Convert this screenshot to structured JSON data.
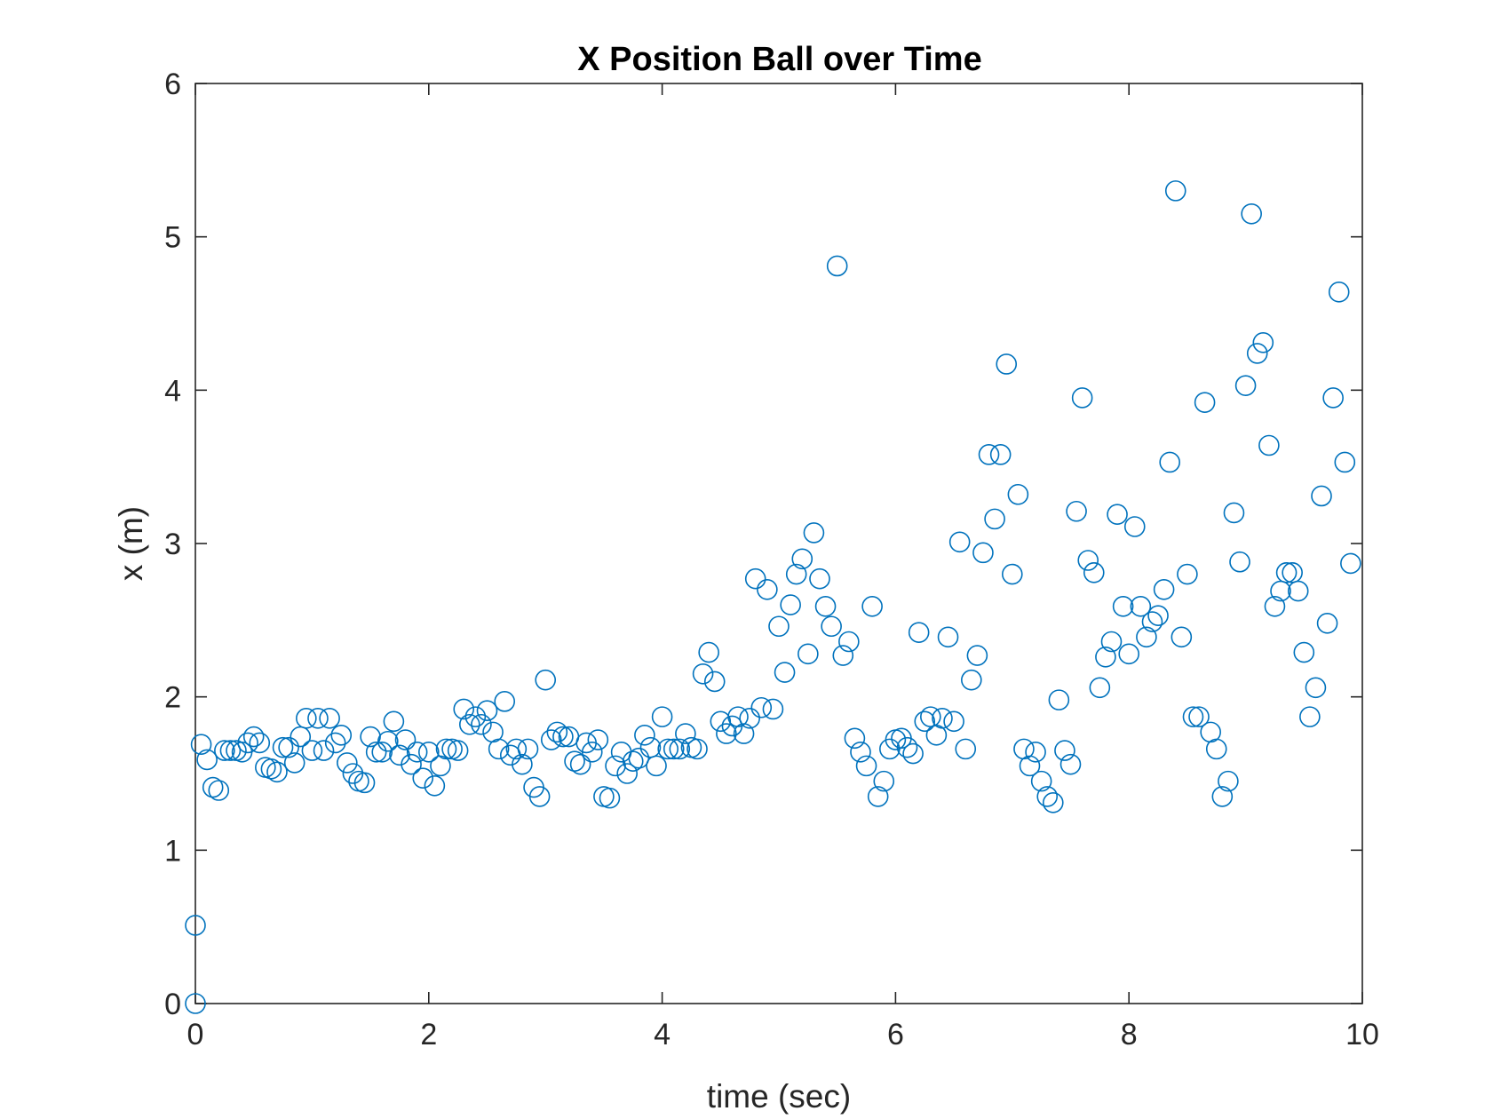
{
  "chart_data": {
    "type": "scatter",
    "title": "X Position Ball over Time",
    "xlabel": "time (sec)",
    "ylabel": "x (m)",
    "xlim": [
      0,
      10
    ],
    "ylim": [
      0,
      6
    ],
    "xticks": [
      0,
      2,
      4,
      6,
      8,
      10
    ],
    "yticks": [
      0,
      1,
      2,
      3,
      4,
      5,
      6
    ],
    "grid": false,
    "marker": "open-circle",
    "marker_color": "#0072BD",
    "series": [
      {
        "x": [
          0.0,
          0.0,
          0.05,
          0.1,
          0.15,
          0.2,
          0.25,
          0.3,
          0.35,
          0.4,
          0.45,
          0.5,
          0.55,
          0.6,
          0.65,
          0.7,
          0.75,
          0.8,
          0.85,
          0.9,
          0.95,
          1.0,
          1.05,
          1.1,
          1.15,
          1.2,
          1.25,
          1.3,
          1.35,
          1.4,
          1.45,
          1.5,
          1.55,
          1.6,
          1.65,
          1.7,
          1.75,
          1.8,
          1.85,
          1.9,
          1.95,
          2.0,
          2.05,
          2.1,
          2.15,
          2.2,
          2.25,
          2.3,
          2.35,
          2.4,
          2.45,
          2.5,
          2.55,
          2.6,
          2.65,
          2.7,
          2.75,
          2.8,
          2.85,
          2.9,
          2.95,
          3.0,
          3.05,
          3.1,
          3.15,
          3.2,
          3.25,
          3.3,
          3.35,
          3.4,
          3.45,
          3.5,
          3.55,
          3.6,
          3.65,
          3.7,
          3.75,
          3.8,
          3.85,
          3.9,
          3.95,
          4.0,
          4.05,
          4.1,
          4.15,
          4.2,
          4.25,
          4.3,
          4.35,
          4.4,
          4.45,
          4.5,
          4.55,
          4.6,
          4.65,
          4.7,
          4.75,
          4.8,
          4.85,
          4.9,
          4.95,
          5.0,
          5.05,
          5.1,
          5.15,
          5.2,
          5.25,
          5.3,
          5.35,
          5.4,
          5.45,
          5.5,
          5.55,
          5.6,
          5.65,
          5.7,
          5.75,
          5.8,
          5.85,
          5.9,
          5.95,
          6.0,
          6.05,
          6.1,
          6.15,
          6.2,
          6.25,
          6.3,
          6.35,
          6.4,
          6.45,
          6.5,
          6.55,
          6.6,
          6.65,
          6.7,
          6.75,
          6.8,
          6.85,
          6.9,
          6.95,
          7.0,
          7.05,
          7.1,
          7.15,
          7.2,
          7.25,
          7.3,
          7.35,
          7.4,
          7.45,
          7.5,
          7.55,
          7.6,
          7.65,
          7.7,
          7.75,
          7.8,
          7.85,
          7.9,
          7.95,
          8.0,
          8.05,
          8.1,
          8.15,
          8.2,
          8.25,
          8.3,
          8.35,
          8.4,
          8.45,
          8.5,
          8.55,
          8.6,
          8.65,
          8.7,
          8.75,
          8.8,
          8.85,
          8.9,
          8.95,
          9.0,
          9.05,
          9.1,
          9.15,
          9.2,
          9.25,
          9.3,
          9.35,
          9.4,
          9.45,
          9.5,
          9.55,
          9.6,
          9.65,
          9.7,
          9.75,
          9.8,
          9.85,
          9.9
        ],
        "y": [
          0.0,
          0.51,
          1.69,
          1.59,
          1.41,
          1.39,
          1.65,
          1.65,
          1.65,
          1.64,
          1.7,
          1.74,
          1.7,
          1.54,
          1.53,
          1.51,
          1.67,
          1.67,
          1.57,
          1.74,
          1.86,
          1.65,
          1.86,
          1.65,
          1.86,
          1.7,
          1.75,
          1.57,
          1.5,
          1.45,
          1.44,
          1.74,
          1.64,
          1.64,
          1.71,
          1.84,
          1.62,
          1.72,
          1.56,
          1.64,
          1.47,
          1.64,
          1.42,
          1.55,
          1.66,
          1.66,
          1.65,
          1.92,
          1.82,
          1.87,
          1.82,
          1.91,
          1.77,
          1.66,
          1.97,
          1.62,
          1.66,
          1.56,
          1.66,
          1.41,
          1.35,
          2.11,
          1.72,
          1.77,
          1.74,
          1.74,
          1.58,
          1.56,
          1.7,
          1.64,
          1.72,
          1.35,
          1.34,
          1.55,
          1.64,
          1.5,
          1.58,
          1.6,
          1.75,
          1.67,
          1.55,
          1.87,
          1.66,
          1.66,
          1.66,
          1.76,
          1.67,
          1.66,
          2.15,
          2.29,
          2.1,
          1.84,
          1.76,
          1.81,
          1.87,
          1.76,
          1.86,
          2.77,
          1.93,
          2.7,
          1.92,
          2.46,
          2.16,
          2.6,
          2.8,
          2.9,
          2.28,
          3.07,
          2.77,
          2.59,
          2.46,
          4.81,
          2.27,
          2.36,
          1.73,
          1.64,
          1.55,
          2.59,
          1.35,
          1.45,
          1.66,
          1.72,
          1.73,
          1.67,
          1.63,
          2.42,
          1.84,
          1.87,
          1.75,
          1.86,
          2.39,
          1.84,
          3.01,
          1.66,
          2.11,
          2.27,
          2.94,
          3.58,
          3.16,
          3.58,
          4.17,
          2.8,
          3.32,
          1.66,
          1.55,
          1.64,
          1.45,
          1.35,
          1.31,
          1.98,
          1.65,
          1.56,
          3.21,
          3.95,
          2.89,
          2.81,
          2.06,
          2.26,
          2.36,
          3.19,
          2.59,
          2.28,
          3.11,
          2.59,
          2.39,
          2.49,
          2.53,
          2.7,
          3.53,
          5.3,
          2.39,
          2.8,
          1.87,
          1.87,
          3.92,
          1.77,
          1.66,
          1.35,
          1.45,
          3.2,
          2.88,
          4.03,
          5.15,
          4.24,
          4.31,
          3.64,
          2.59,
          2.69,
          2.81,
          2.81,
          2.69,
          2.29,
          1.87,
          2.06,
          3.31,
          2.48,
          3.95,
          4.64,
          3.53,
          2.87
        ]
      }
    ]
  }
}
